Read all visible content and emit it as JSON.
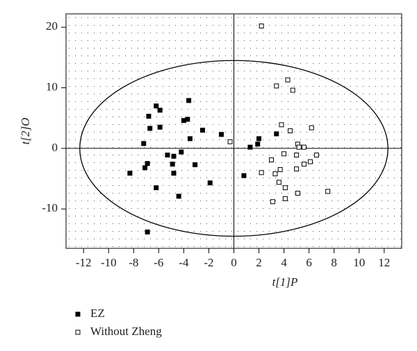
{
  "chart_data": {
    "type": "scatter",
    "x_label": "t[1]P",
    "y_label": "t[2]O",
    "xlim": [
      -13.4,
      13.4
    ],
    "ylim": [
      -16.5,
      22.2
    ],
    "xticks": [
      -12,
      -10,
      -8,
      -6,
      -4,
      -2,
      0,
      2,
      4,
      6,
      8,
      10,
      12
    ],
    "yticks": [
      -10,
      0,
      10,
      20
    ],
    "ellipse_radii": [
      12.3,
      14.5
    ],
    "grid": true,
    "legend": "bottom-left",
    "series": [
      {
        "name": "EZ",
        "color": "#000000",
        "filled": true,
        "x": [
          -3.6,
          -6.2,
          -5.9,
          -6.8,
          -3.7,
          -4.0,
          -6.7,
          -5.9,
          -2.5,
          -3.5,
          -1.0,
          -7.2,
          2.0,
          1.9,
          1.3,
          3.4,
          -4.2,
          -5.3,
          -4.8,
          -3.1,
          -6.9,
          -7.1,
          -4.9,
          -4.8,
          -8.3,
          0.8,
          -1.9,
          -6.2,
          -4.4,
          -6.9
        ],
        "y": [
          7.9,
          7.0,
          6.3,
          5.3,
          4.8,
          4.6,
          3.3,
          3.5,
          3.0,
          1.6,
          2.3,
          0.8,
          1.6,
          0.7,
          0.2,
          2.4,
          -0.6,
          -1.1,
          -1.3,
          -2.7,
          -2.5,
          -3.2,
          -2.6,
          -4.1,
          -4.1,
          -4.5,
          -5.7,
          -6.5,
          -7.9,
          -13.8
        ]
      },
      {
        "name": "Without Zheng",
        "color": "#000000",
        "filled": false,
        "x": [
          2.2,
          3.4,
          4.3,
          4.7,
          3.8,
          4.5,
          6.2,
          -0.3,
          5.1,
          5.2,
          5.6,
          4.0,
          5.0,
          6.6,
          3.0,
          6.1,
          5.6,
          3.7,
          5.0,
          2.2,
          3.3,
          3.6,
          4.1,
          5.1,
          7.5,
          4.1,
          3.1
        ],
        "y": [
          20.2,
          10.3,
          11.3,
          9.6,
          3.9,
          2.9,
          3.4,
          1.1,
          0.7,
          0.2,
          0.2,
          -0.9,
          -1.1,
          -1.1,
          -1.9,
          -2.2,
          -2.6,
          -3.5,
          -3.4,
          -4.0,
          -4.2,
          -5.6,
          -6.5,
          -7.4,
          -7.1,
          -8.3,
          -8.8
        ]
      }
    ]
  }
}
